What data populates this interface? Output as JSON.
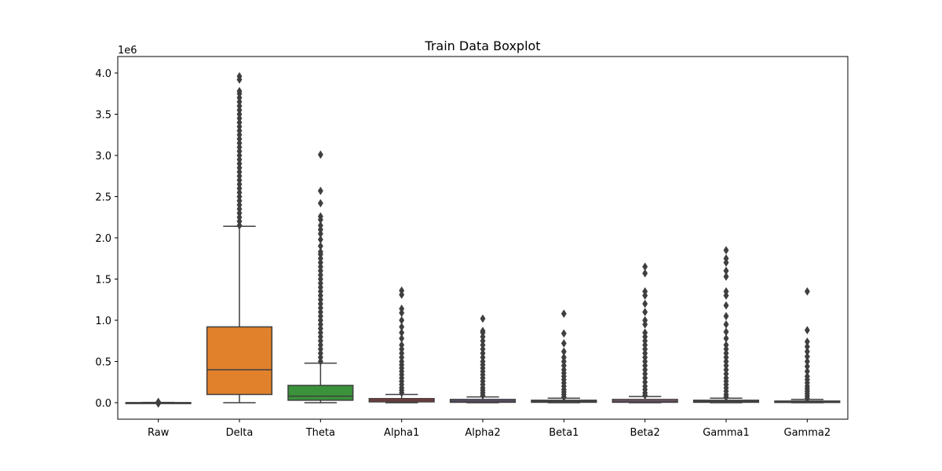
{
  "chart_data": {
    "type": "box",
    "title": "Train Data Boxplot",
    "xlabel": "",
    "ylabel": "",
    "y_offset_label": "1e6",
    "ylim": [
      -0.2,
      4.2
    ],
    "yticks": [
      0.0,
      0.5,
      1.0,
      1.5,
      2.0,
      2.5,
      3.0,
      3.5,
      4.0
    ],
    "ytick_labels": [
      "0.0",
      "0.5",
      "1.0",
      "1.5",
      "2.0",
      "2.5",
      "3.0",
      "3.5",
      "4.0"
    ],
    "grid": false,
    "categories": [
      "Raw",
      "Delta",
      "Theta",
      "Alpha1",
      "Alpha2",
      "Beta1",
      "Beta2",
      "Gamma1",
      "Gamma2"
    ],
    "series": [
      {
        "category": "Raw",
        "color": "#3a75ae",
        "whisker_low": -0.003,
        "q1": -0.001,
        "median": 0.0,
        "q3": 0.001,
        "whisker_high": 0.003,
        "outliers": [
          -0.01,
          -0.005,
          0.005,
          0.01
        ]
      },
      {
        "category": "Delta",
        "color": "#e1812b",
        "whisker_low": 0.0,
        "q1": 0.1,
        "median": 0.4,
        "q3": 0.92,
        "whisker_high": 2.14,
        "outliers": [
          2.15,
          2.2,
          2.25,
          2.3,
          2.35,
          2.4,
          2.45,
          2.5,
          2.55,
          2.6,
          2.65,
          2.7,
          2.75,
          2.8,
          2.85,
          2.9,
          2.95,
          3.0,
          3.05,
          3.1,
          3.15,
          3.2,
          3.25,
          3.3,
          3.35,
          3.4,
          3.45,
          3.5,
          3.55,
          3.6,
          3.65,
          3.7,
          3.75,
          3.78,
          3.92,
          3.96
        ]
      },
      {
        "category": "Theta",
        "color": "#3a923a",
        "whisker_low": 0.0,
        "q1": 0.03,
        "median": 0.08,
        "q3": 0.21,
        "whisker_high": 0.48,
        "outliers": [
          0.5,
          0.55,
          0.6,
          0.65,
          0.7,
          0.75,
          0.8,
          0.85,
          0.9,
          0.95,
          1.0,
          1.05,
          1.1,
          1.15,
          1.2,
          1.25,
          1.3,
          1.35,
          1.4,
          1.45,
          1.5,
          1.55,
          1.6,
          1.65,
          1.7,
          1.75,
          1.8,
          1.83,
          1.9,
          1.98,
          2.05,
          2.1,
          2.15,
          2.22,
          2.26,
          2.42,
          2.57,
          3.01
        ]
      },
      {
        "category": "Alpha1",
        "color": "#c03d3e",
        "whisker_low": 0.0,
        "q1": 0.01,
        "median": 0.03,
        "q3": 0.05,
        "whisker_high": 0.1,
        "outliers": [
          0.12,
          0.15,
          0.18,
          0.22,
          0.26,
          0.3,
          0.34,
          0.38,
          0.42,
          0.46,
          0.5,
          0.55,
          0.6,
          0.65,
          0.7,
          0.78,
          0.85,
          0.92,
          1.0,
          1.09,
          1.14,
          1.31,
          1.36
        ]
      },
      {
        "category": "Alpha2",
        "color": "#9372b2",
        "whisker_low": 0.0,
        "q1": 0.005,
        "median": 0.02,
        "q3": 0.04,
        "whisker_high": 0.07,
        "outliers": [
          0.09,
          0.12,
          0.15,
          0.18,
          0.22,
          0.26,
          0.3,
          0.34,
          0.38,
          0.42,
          0.46,
          0.5,
          0.55,
          0.6,
          0.65,
          0.7,
          0.75,
          0.8,
          0.85,
          0.87,
          1.02
        ]
      },
      {
        "category": "Beta1",
        "color": "#845b53",
        "whisker_low": 0.0,
        "q1": 0.005,
        "median": 0.015,
        "q3": 0.03,
        "whisker_high": 0.055,
        "outliers": [
          0.07,
          0.1,
          0.13,
          0.16,
          0.2,
          0.24,
          0.28,
          0.32,
          0.36,
          0.4,
          0.45,
          0.5,
          0.55,
          0.62,
          0.72,
          0.84,
          1.08
        ]
      },
      {
        "category": "Beta2",
        "color": "#d684bd",
        "whisker_low": 0.0,
        "q1": 0.005,
        "median": 0.02,
        "q3": 0.04,
        "whisker_high": 0.075,
        "outliers": [
          0.09,
          0.12,
          0.16,
          0.2,
          0.25,
          0.3,
          0.35,
          0.4,
          0.45,
          0.5,
          0.55,
          0.6,
          0.65,
          0.7,
          0.75,
          0.8,
          0.85,
          0.95,
          1.0,
          1.1,
          1.2,
          1.3,
          1.35,
          1.57,
          1.65
        ]
      },
      {
        "category": "Gamma1",
        "color": "#7f7f7f",
        "whisker_low": 0.0,
        "q1": 0.005,
        "median": 0.015,
        "q3": 0.03,
        "whisker_high": 0.055,
        "outliers": [
          0.07,
          0.1,
          0.14,
          0.18,
          0.22,
          0.26,
          0.3,
          0.35,
          0.4,
          0.45,
          0.5,
          0.55,
          0.6,
          0.65,
          0.7,
          0.78,
          0.86,
          0.95,
          1.05,
          1.18,
          1.3,
          1.35,
          1.53,
          1.6,
          1.7,
          1.75,
          1.85
        ]
      },
      {
        "category": "Gamma2",
        "color": "#a9aa35",
        "whisker_low": 0.0,
        "q1": 0.003,
        "median": 0.01,
        "q3": 0.02,
        "whisker_high": 0.04,
        "outliers": [
          0.05,
          0.08,
          0.11,
          0.14,
          0.17,
          0.2,
          0.24,
          0.28,
          0.32,
          0.38,
          0.44,
          0.5,
          0.56,
          0.62,
          0.68,
          0.74,
          0.88,
          1.35
        ]
      }
    ]
  }
}
